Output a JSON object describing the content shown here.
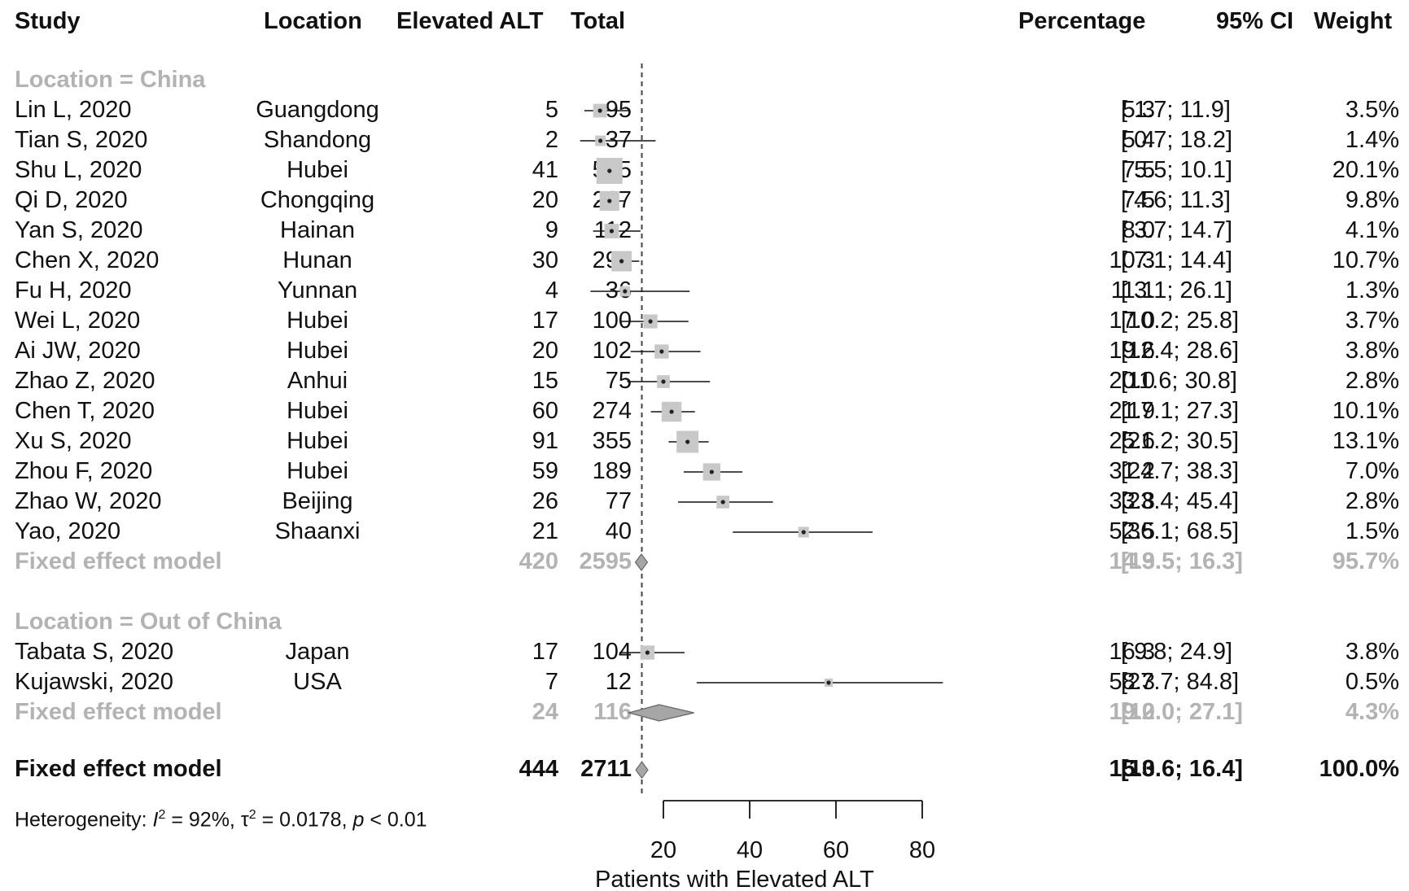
{
  "headers": {
    "study": "Study",
    "location": "Location",
    "events": "Elevated ALT",
    "total": "Total",
    "percentage": "Percentage",
    "ci": "95% CI",
    "weight": "Weight"
  },
  "groups": [
    {
      "label": "Location = China",
      "studies": [
        {
          "study": "Lin L, 2020",
          "location": "Guangdong",
          "events": "5",
          "total": "95",
          "pct": "5.3",
          "ci": "[ 1.7; 11.9]",
          "weight": "3.5%"
        },
        {
          "study": "Tian S, 2020",
          "location": "Shandong",
          "events": "2",
          "total": "37",
          "pct": "5.4",
          "ci": "[ 0.7; 18.2]",
          "weight": "1.4%"
        },
        {
          "study": "Shu L, 2020",
          "location": "Hubei",
          "events": "41",
          "total": "545",
          "pct": "7.5",
          "ci": "[ 5.5; 10.1]",
          "weight": "20.1%"
        },
        {
          "study": "Qi D, 2020",
          "location": "Chongqing",
          "events": "20",
          "total": "267",
          "pct": "7.5",
          "ci": "[ 4.6; 11.3]",
          "weight": "9.8%"
        },
        {
          "study": "Yan S, 2020",
          "location": "Hainan",
          "events": "9",
          "total": "112",
          "pct": "8.0",
          "ci": "[ 3.7; 14.7]",
          "weight": "4.1%"
        },
        {
          "study": "Chen X, 2020",
          "location": "Hunan",
          "events": "30",
          "total": "291",
          "pct": "10.3",
          "ci": "[ 7.1; 14.4]",
          "weight": "10.7%"
        },
        {
          "study": "Fu H, 2020",
          "location": "Yunnan",
          "events": "4",
          "total": "36",
          "pct": "11.1",
          "ci": "[ 3.1; 26.1]",
          "weight": "1.3%"
        },
        {
          "study": "Wei L, 2020",
          "location": "Hubei",
          "events": "17",
          "total": "100",
          "pct": "17.0",
          "ci": "[10.2; 25.8]",
          "weight": "3.7%"
        },
        {
          "study": "Ai JW, 2020",
          "location": "Hubei",
          "events": "20",
          "total": "102",
          "pct": "19.6",
          "ci": "[12.4; 28.6]",
          "weight": "3.8%"
        },
        {
          "study": "Zhao Z, 2020",
          "location": "Anhui",
          "events": "15",
          "total": "75",
          "pct": "20.0",
          "ci": "[11.6; 30.8]",
          "weight": "2.8%"
        },
        {
          "study": "Chen T, 2020",
          "location": "Hubei",
          "events": "60",
          "total": "274",
          "pct": "21.9",
          "ci": "[17.1; 27.3]",
          "weight": "10.1%"
        },
        {
          "study": "Xu S, 2020",
          "location": "Hubei",
          "events": "91",
          "total": "355",
          "pct": "25.6",
          "ci": "[21.2; 30.5]",
          "weight": "13.1%"
        },
        {
          "study": "Zhou F, 2020",
          "location": "Hubei",
          "events": "59",
          "total": "189",
          "pct": "31.2",
          "ci": "[24.7; 38.3]",
          "weight": "7.0%"
        },
        {
          "study": "Zhao W, 2020",
          "location": "Beijing",
          "events": "26",
          "total": "77",
          "pct": "33.8",
          "ci": "[23.4; 45.4]",
          "weight": "2.8%"
        },
        {
          "study": "Yao, 2020",
          "location": "Shaanxi",
          "events": "21",
          "total": "40",
          "pct": "52.5",
          "ci": "[36.1; 68.5]",
          "weight": "1.5%"
        }
      ],
      "summary": {
        "label": "Fixed effect model",
        "events": "420",
        "total": "2595",
        "pct": "14.9",
        "ci": "[13.5; 16.3]",
        "weight": "95.7%"
      }
    },
    {
      "label": "Location = Out of China",
      "studies": [
        {
          "study": "Tabata S, 2020",
          "location": "Japan",
          "events": "17",
          "total": "104",
          "pct": "16.3",
          "ci": "[ 9.8; 24.9]",
          "weight": "3.8%"
        },
        {
          "study": "Kujawski, 2020",
          "location": "USA",
          "events": "7",
          "total": "12",
          "pct": "58.3",
          "ci": "[27.7; 84.8]",
          "weight": "0.5%"
        }
      ],
      "summary": {
        "label": "Fixed effect model",
        "events": "24",
        "total": "116",
        "pct": "19.0",
        "ci": "[12.0; 27.1]",
        "weight": "4.3%"
      }
    }
  ],
  "overall": {
    "label": "Fixed effect model",
    "events": "444",
    "total": "2711",
    "pct": "15.0",
    "ci": "[13.6; 16.4]",
    "weight": "100.0%"
  },
  "heterogeneity": {
    "prefix": "Heterogeneity: ",
    "i2_symbol": "I",
    "i2_sup": "2",
    "i2_value": " = 92%, ",
    "tau_symbol": "τ",
    "tau_sup": "2",
    "tau_value": " = 0.0178, ",
    "p_symbol": "p",
    "p_value": " < 0.01"
  },
  "chart_data": {
    "type": "forest",
    "xlabel": "Patients with Elevated ALT",
    "xticks": [
      20,
      40,
      60,
      80
    ],
    "reference_line": 15.0,
    "points": [
      {
        "study": "Lin L, 2020",
        "estimate": 5.3,
        "lower": 1.7,
        "upper": 11.9,
        "weight": 3.5
      },
      {
        "study": "Tian S, 2020",
        "estimate": 5.4,
        "lower": 0.7,
        "upper": 18.2,
        "weight": 1.4
      },
      {
        "study": "Shu L, 2020",
        "estimate": 7.5,
        "lower": 5.5,
        "upper": 10.1,
        "weight": 20.1
      },
      {
        "study": "Qi D, 2020",
        "estimate": 7.5,
        "lower": 4.6,
        "upper": 11.3,
        "weight": 9.8
      },
      {
        "study": "Yan S, 2020",
        "estimate": 8.0,
        "lower": 3.7,
        "upper": 14.7,
        "weight": 4.1
      },
      {
        "study": "Chen X, 2020",
        "estimate": 10.3,
        "lower": 7.1,
        "upper": 14.4,
        "weight": 10.7
      },
      {
        "study": "Fu H, 2020",
        "estimate": 11.1,
        "lower": 3.1,
        "upper": 26.1,
        "weight": 1.3
      },
      {
        "study": "Wei L, 2020",
        "estimate": 17.0,
        "lower": 10.2,
        "upper": 25.8,
        "weight": 3.7
      },
      {
        "study": "Ai JW, 2020",
        "estimate": 19.6,
        "lower": 12.4,
        "upper": 28.6,
        "weight": 3.8
      },
      {
        "study": "Zhao Z, 2020",
        "estimate": 20.0,
        "lower": 11.6,
        "upper": 30.8,
        "weight": 2.8
      },
      {
        "study": "Chen T, 2020",
        "estimate": 21.9,
        "lower": 17.1,
        "upper": 27.3,
        "weight": 10.1
      },
      {
        "study": "Xu S, 2020",
        "estimate": 25.6,
        "lower": 21.2,
        "upper": 30.5,
        "weight": 13.1
      },
      {
        "study": "Zhou F, 2020",
        "estimate": 31.2,
        "lower": 24.7,
        "upper": 38.3,
        "weight": 7.0
      },
      {
        "study": "Zhao W, 2020",
        "estimate": 33.8,
        "lower": 23.4,
        "upper": 45.4,
        "weight": 2.8
      },
      {
        "study": "Yao, 2020",
        "estimate": 52.5,
        "lower": 36.1,
        "upper": 68.5,
        "weight": 1.5
      },
      {
        "study": "Tabata S, 2020",
        "estimate": 16.3,
        "lower": 9.8,
        "upper": 24.9,
        "weight": 3.8
      },
      {
        "study": "Kujawski, 2020",
        "estimate": 58.3,
        "lower": 27.7,
        "upper": 84.8,
        "weight": 0.5
      }
    ],
    "summaries": [
      {
        "label": "China fixed effect",
        "estimate": 14.9,
        "lower": 13.5,
        "upper": 16.3
      },
      {
        "label": "Out of China fixed effect",
        "estimate": 19.0,
        "lower": 12.0,
        "upper": 27.1
      },
      {
        "label": "Overall fixed effect",
        "estimate": 15.0,
        "lower": 13.6,
        "upper": 16.4
      }
    ],
    "colors": {
      "box": "#c8c8c8",
      "line": "#111111",
      "diamond": "#a6a6a6",
      "grey_text": "#b3b3b3"
    }
  }
}
